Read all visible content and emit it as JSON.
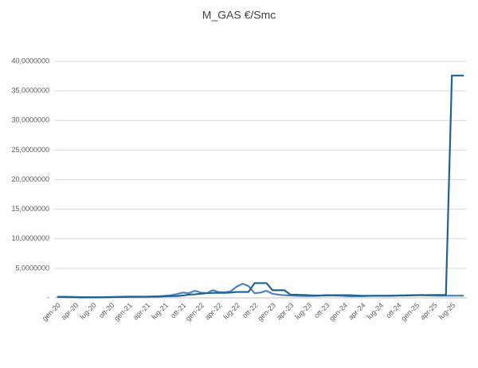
{
  "chart_data": {
    "type": "line",
    "title": "M_GAS €/Smc",
    "categories": [
      "gen-20",
      null,
      null,
      "apr-20",
      null,
      null,
      "lug-20",
      null,
      null,
      "ott-20",
      null,
      null,
      "gen-21",
      null,
      null,
      "apr-21",
      null,
      null,
      "lug-21",
      null,
      null,
      "ott-21",
      null,
      null,
      "gen-22",
      null,
      null,
      "apr-22",
      null,
      null,
      "lug-22",
      null,
      null,
      "ott-22",
      null,
      null,
      "gen-23",
      null,
      null,
      "apr-23",
      null,
      null,
      "lug-23",
      null,
      null,
      "ott-23",
      null,
      null,
      "gen-24",
      null,
      null,
      "apr-24",
      null,
      null,
      "lug-24",
      null,
      null,
      "ott-24",
      null,
      null,
      "gen-25",
      null,
      null,
      "apr-25",
      null,
      null,
      "lug-25",
      null,
      null
    ],
    "series": [
      {
        "color": "#4f81bd",
        "values": [
          0.15,
          0.14,
          0.12,
          0.09,
          0.07,
          0.08,
          0.1,
          0.12,
          0.14,
          0.16,
          0.17,
          0.2,
          0.22,
          0.2,
          0.19,
          0.21,
          0.24,
          0.27,
          0.35,
          0.45,
          0.65,
          0.9,
          0.8,
          1.2,
          0.9,
          0.8,
          1.3,
          1.0,
          0.95,
          1.1,
          1.9,
          2.4,
          2.0,
          0.8,
          0.9,
          1.2,
          0.7,
          0.55,
          0.45,
          0.4,
          0.35,
          0.33,
          0.32,
          0.33,
          0.38,
          0.42,
          0.4,
          0.38,
          0.33,
          0.27,
          0.28,
          0.3,
          0.33,
          0.35,
          0.36,
          0.38,
          0.38,
          0.4,
          0.43,
          0.45,
          0.48,
          0.5,
          0.42,
          0.38,
          0.37,
          0.36,
          0.37,
          0.38,
          0.37
        ]
      },
      {
        "color": "#1f6391",
        "values": [
          0.18,
          0.18,
          0.17,
          0.15,
          0.12,
          0.1,
          0.1,
          0.1,
          0.1,
          0.12,
          0.14,
          0.16,
          0.18,
          0.2,
          0.2,
          0.2,
          0.22,
          0.24,
          0.26,
          0.3,
          0.32,
          0.4,
          0.55,
          0.6,
          0.7,
          0.8,
          0.85,
          0.85,
          0.85,
          0.9,
          1.0,
          1.0,
          1.0,
          2.5,
          2.5,
          2.5,
          1.3,
          1.3,
          1.3,
          0.55,
          0.55,
          0.5,
          0.45,
          0.4,
          0.4,
          0.45,
          0.45,
          0.45,
          0.45,
          0.45,
          0.4,
          0.35,
          0.35,
          0.35,
          0.35,
          0.35,
          0.35,
          0.4,
          0.4,
          0.42,
          0.45,
          0.45,
          0.48,
          0.5,
          0.5,
          0.5,
          37.6,
          37.6,
          37.6
        ]
      }
    ],
    "ylim": [
      0,
      40
    ],
    "yticks": [
      {
        "value": 0,
        "label": "-"
      },
      {
        "value": 5,
        "label": "5,0000000"
      },
      {
        "value": 10,
        "label": "10,0000000"
      },
      {
        "value": 15,
        "label": "15,0000000"
      },
      {
        "value": 20,
        "label": "20,0000000"
      },
      {
        "value": 25,
        "label": "25,0000000"
      },
      {
        "value": 30,
        "label": "30,0000000"
      },
      {
        "value": 35,
        "label": "35,0000000"
      },
      {
        "value": 40,
        "label": "40,0000000"
      }
    ],
    "grid": true
  }
}
